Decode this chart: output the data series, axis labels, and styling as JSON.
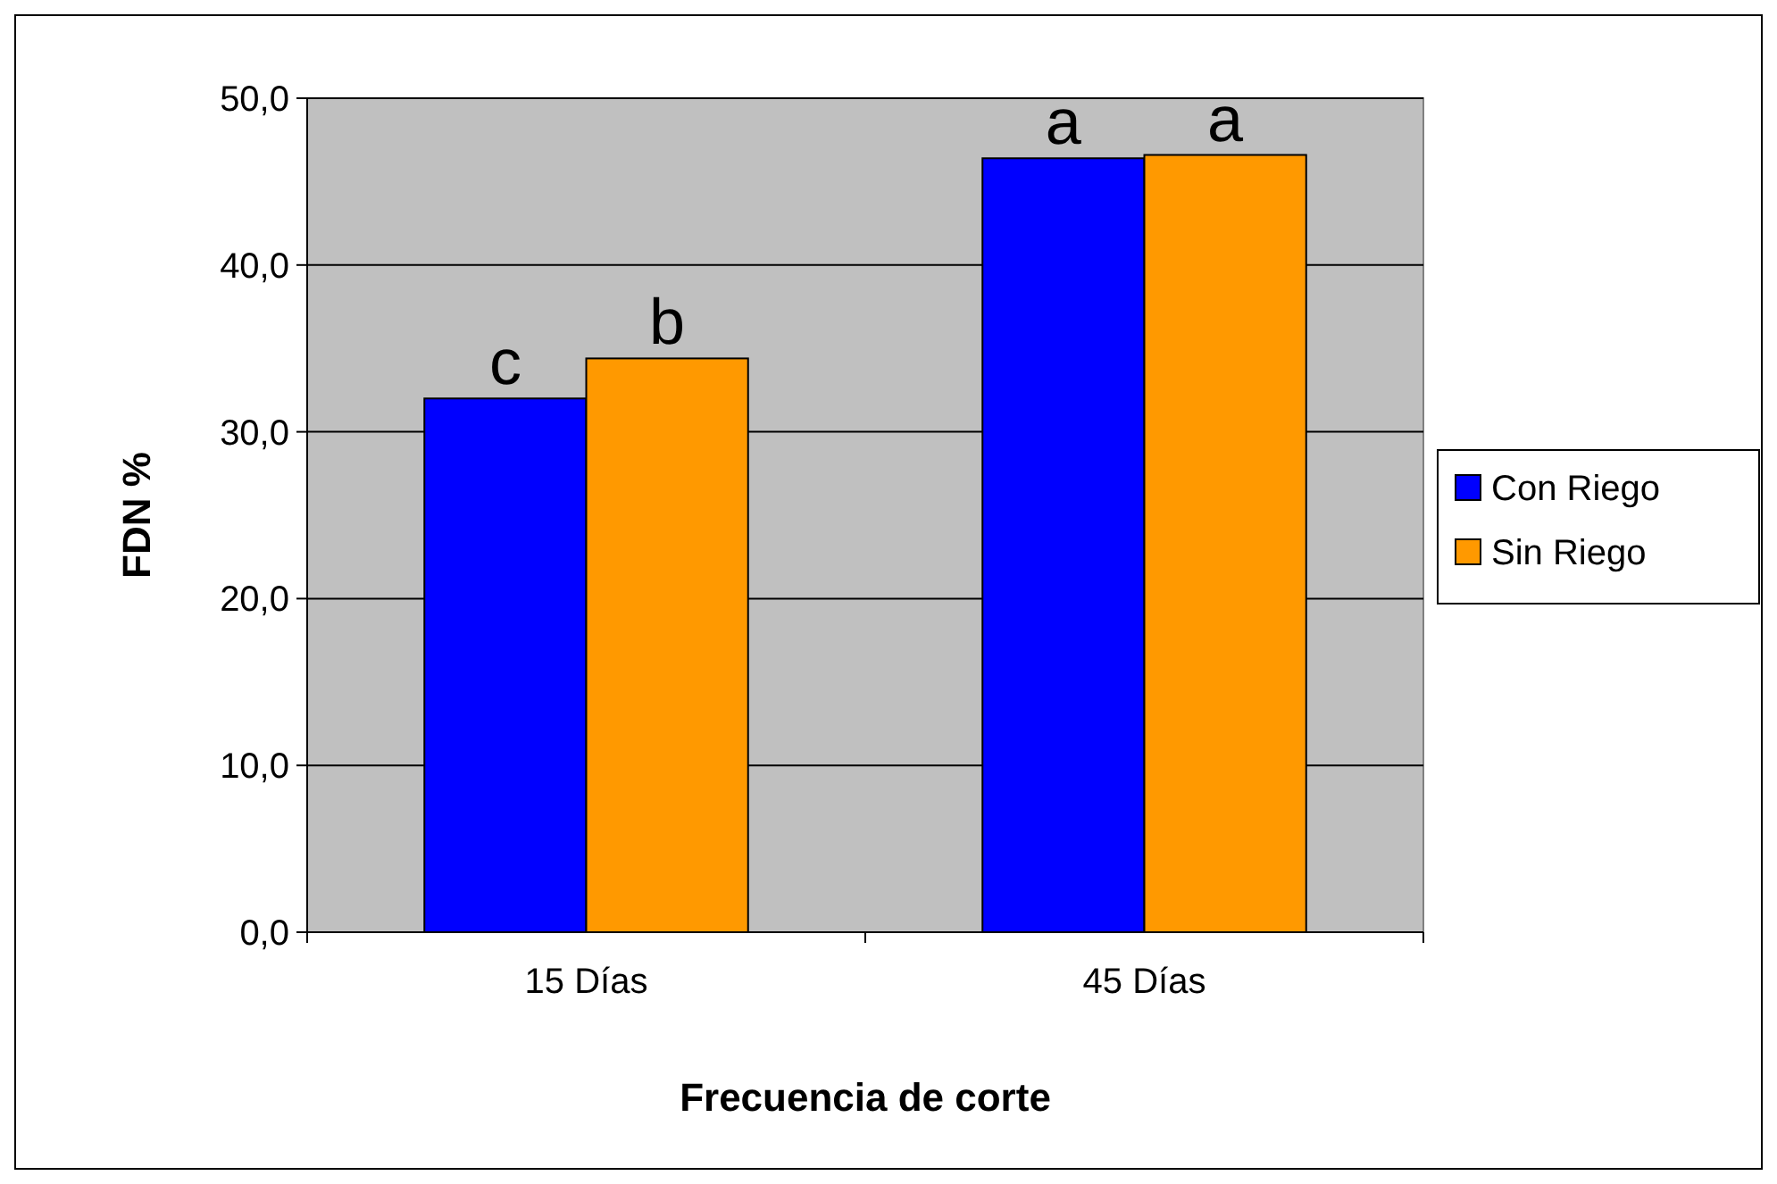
{
  "chart_data": {
    "type": "bar",
    "xlabel": "Frecuencia de corte",
    "ylabel": "FDN %",
    "categories": [
      "15 Días",
      "45 Días"
    ],
    "series": [
      {
        "name": "Con Riego",
        "color": "#0000ff",
        "values": [
          32.0,
          46.4
        ]
      },
      {
        "name": "Sin Riego",
        "color": "#ff9900",
        "values": [
          34.4,
          46.6
        ]
      }
    ],
    "ylim": [
      0,
      50
    ],
    "yticks": [
      {
        "value": 0,
        "label": "0,0"
      },
      {
        "value": 10,
        "label": "10,0"
      },
      {
        "value": 20,
        "label": "20,0"
      },
      {
        "value": 30,
        "label": "30,0"
      },
      {
        "value": 40,
        "label": "40,0"
      },
      {
        "value": 50,
        "label": "50,0"
      }
    ],
    "grid": "y",
    "legend": "right",
    "annotations": [
      {
        "text": "c",
        "x": "15 Días",
        "y": 32.0
      },
      {
        "text": "b",
        "x": "15 Días",
        "y": 34.4
      },
      {
        "text": "a",
        "x": "45 Días",
        "y": 46.4
      },
      {
        "text": "a",
        "x": "45 Días",
        "y": 46.6
      }
    ]
  }
}
